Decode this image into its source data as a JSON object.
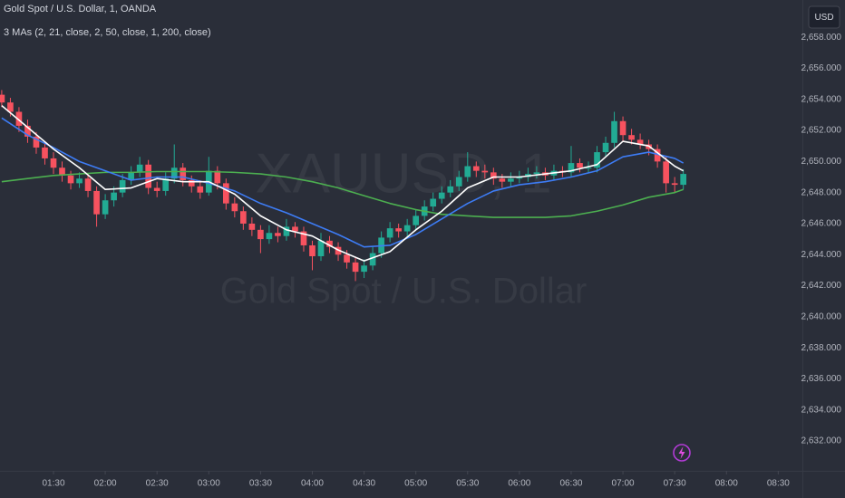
{
  "chart_data": {
    "type": "candlestick",
    "title": "Gold Spot / U.S. Dollar, 1, OANDA",
    "subtitle": "3 MAs (2, 21, close, 2, 50, close, 1, 200, close)",
    "watermark": "XAUUSD, 1",
    "watermark_subtitle": "Gold Spot / U.S. Dollar",
    "currency": "USD",
    "up_color": "#22ab94",
    "down_color": "#f7525f",
    "x": [
      "01:00",
      "01:05",
      "01:10",
      "01:15",
      "01:20",
      "01:25",
      "01:30",
      "01:35",
      "01:40",
      "01:45",
      "01:50",
      "01:55",
      "02:00",
      "02:05",
      "02:10",
      "02:15",
      "02:20",
      "02:25",
      "02:30",
      "02:35",
      "02:40",
      "02:45",
      "02:50",
      "02:55",
      "03:00",
      "03:05",
      "03:10",
      "03:15",
      "03:20",
      "03:25",
      "03:30",
      "03:35",
      "03:40",
      "03:45",
      "03:50",
      "03:55",
      "04:00",
      "04:05",
      "04:10",
      "04:15",
      "04:20",
      "04:25",
      "04:30",
      "04:35",
      "04:40",
      "04:45",
      "04:50",
      "04:55",
      "05:00",
      "05:05",
      "05:10",
      "05:15",
      "05:20",
      "05:25",
      "05:30",
      "05:35",
      "05:40",
      "05:45",
      "05:50",
      "05:55",
      "06:00",
      "06:05",
      "06:10",
      "06:15",
      "06:20",
      "06:25",
      "06:30",
      "06:35",
      "06:40",
      "06:45",
      "06:50",
      "06:55",
      "07:00",
      "07:05",
      "07:10",
      "07:15",
      "07:20",
      "07:25",
      "07:30",
      "07:35"
    ],
    "ohlc": [
      [
        2654.3,
        2654.6,
        2653.5,
        2653.8
      ],
      [
        2653.8,
        2654.1,
        2652.9,
        2653.2
      ],
      [
        2653.2,
        2653.5,
        2651.9,
        2652.3
      ],
      [
        2652.3,
        2652.7,
        2651.2,
        2651.6
      ],
      [
        2651.6,
        2651.9,
        2650.5,
        2650.9
      ],
      [
        2650.9,
        2651.3,
        2649.8,
        2650.2
      ],
      [
        2650.2,
        2650.6,
        2649.2,
        2649.6
      ],
      [
        2649.6,
        2650.0,
        2648.7,
        2649.1
      ],
      [
        2649.1,
        2649.4,
        2648.2,
        2648.6
      ],
      [
        2648.6,
        2649.3,
        2648.3,
        2648.9
      ],
      [
        2648.9,
        2649.2,
        2647.7,
        2648.1
      ],
      [
        2648.1,
        2648.4,
        2645.8,
        2646.6
      ],
      [
        2646.6,
        2647.9,
        2646.3,
        2647.5
      ],
      [
        2647.5,
        2648.4,
        2647.1,
        2648.0
      ],
      [
        2648.0,
        2649.2,
        2647.7,
        2648.8
      ],
      [
        2648.8,
        2649.7,
        2648.5,
        2649.3
      ],
      [
        2649.3,
        2650.3,
        2649.0,
        2649.8
      ],
      [
        2649.8,
        2650.1,
        2647.9,
        2648.3
      ],
      [
        2648.3,
        2648.7,
        2647.7,
        2648.1
      ],
      [
        2648.1,
        2649.3,
        2647.8,
        2648.9
      ],
      [
        2648.9,
        2651.1,
        2648.6,
        2649.6
      ],
      [
        2649.6,
        2649.9,
        2648.4,
        2648.8
      ],
      [
        2648.8,
        2649.1,
        2648.0,
        2648.4
      ],
      [
        2648.4,
        2648.8,
        2647.6,
        2648.0
      ],
      [
        2648.0,
        2650.3,
        2647.8,
        2649.4
      ],
      [
        2649.4,
        2649.7,
        2648.2,
        2648.6
      ],
      [
        2648.6,
        2648.9,
        2646.9,
        2647.3
      ],
      [
        2647.3,
        2647.7,
        2646.4,
        2646.8
      ],
      [
        2646.8,
        2647.1,
        2645.6,
        2646.0
      ],
      [
        2646.0,
        2646.4,
        2645.2,
        2645.6
      ],
      [
        2645.6,
        2645.9,
        2644.1,
        2645.0
      ],
      [
        2645.0,
        2645.9,
        2644.7,
        2645.4
      ],
      [
        2645.4,
        2645.8,
        2644.8,
        2645.2
      ],
      [
        2645.2,
        2646.3,
        2644.9,
        2645.8
      ],
      [
        2645.8,
        2646.1,
        2645.1,
        2645.5
      ],
      [
        2645.5,
        2645.8,
        2644.2,
        2644.6
      ],
      [
        2644.6,
        2644.9,
        2643.0,
        2643.9
      ],
      [
        2643.9,
        2645.4,
        2643.6,
        2644.9
      ],
      [
        2644.9,
        2645.2,
        2644.1,
        2644.5
      ],
      [
        2644.5,
        2644.8,
        2643.6,
        2644.0
      ],
      [
        2644.0,
        2644.3,
        2643.1,
        2643.5
      ],
      [
        2643.5,
        2643.8,
        2642.3,
        2642.9
      ],
      [
        2642.9,
        2643.7,
        2642.5,
        2643.3
      ],
      [
        2643.3,
        2644.5,
        2643.0,
        2644.1
      ],
      [
        2644.1,
        2645.5,
        2643.8,
        2645.1
      ],
      [
        2645.1,
        2646.1,
        2644.8,
        2645.7
      ],
      [
        2645.7,
        2646.0,
        2645.1,
        2645.5
      ],
      [
        2645.5,
        2646.3,
        2645.2,
        2645.9
      ],
      [
        2645.9,
        2646.9,
        2645.6,
        2646.5
      ],
      [
        2646.5,
        2647.5,
        2646.2,
        2647.1
      ],
      [
        2647.1,
        2648.0,
        2646.8,
        2647.6
      ],
      [
        2647.6,
        2648.4,
        2647.3,
        2648.0
      ],
      [
        2648.0,
        2648.8,
        2647.7,
        2648.4
      ],
      [
        2648.4,
        2649.4,
        2648.1,
        2649.0
      ],
      [
        2649.0,
        2650.6,
        2648.7,
        2649.7
      ],
      [
        2649.7,
        2650.0,
        2649.0,
        2649.4
      ],
      [
        2649.4,
        2649.8,
        2648.9,
        2649.3
      ],
      [
        2649.3,
        2649.6,
        2648.5,
        2648.9
      ],
      [
        2648.9,
        2649.2,
        2648.3,
        2648.7
      ],
      [
        2648.7,
        2649.3,
        2648.4,
        2648.9
      ],
      [
        2648.9,
        2649.4,
        2648.6,
        2649.0
      ],
      [
        2649.0,
        2649.6,
        2648.7,
        2649.2
      ],
      [
        2649.2,
        2649.7,
        2648.9,
        2649.3
      ],
      [
        2649.3,
        2649.6,
        2648.8,
        2649.1
      ],
      [
        2649.1,
        2649.8,
        2648.8,
        2649.4
      ],
      [
        2649.4,
        2649.7,
        2649.0,
        2649.3
      ],
      [
        2649.3,
        2651.0,
        2649.0,
        2649.9
      ],
      [
        2649.9,
        2650.2,
        2649.3,
        2649.6
      ],
      [
        2649.6,
        2650.0,
        2649.3,
        2649.6
      ],
      [
        2649.6,
        2651.0,
        2649.3,
        2650.6
      ],
      [
        2650.6,
        2651.6,
        2650.3,
        2651.2
      ],
      [
        2651.2,
        2653.2,
        2650.9,
        2652.6
      ],
      [
        2652.6,
        2652.9,
        2651.3,
        2651.7
      ],
      [
        2651.7,
        2652.1,
        2651.1,
        2651.4
      ],
      [
        2651.4,
        2651.8,
        2650.8,
        2651.1
      ],
      [
        2651.1,
        2651.4,
        2650.4,
        2650.8
      ],
      [
        2650.8,
        2651.1,
        2649.6,
        2650.0
      ],
      [
        2650.0,
        2650.3,
        2648.0,
        2648.6
      ],
      [
        2648.6,
        2649.0,
        2648.0,
        2648.5
      ],
      [
        2648.5,
        2649.5,
        2648.2,
        2649.2
      ]
    ],
    "series": [
      {
        "color": "#4caf50",
        "x": [
          "01:00",
          "01:15",
          "01:30",
          "01:45",
          "02:00",
          "02:15",
          "02:30",
          "02:45",
          "03:00",
          "03:15",
          "03:30",
          "03:45",
          "04:00",
          "04:15",
          "04:30",
          "04:45",
          "05:00",
          "05:15",
          "05:30",
          "05:45",
          "06:00",
          "06:15",
          "06:30",
          "06:45",
          "07:00",
          "07:15",
          "07:30",
          "07:35"
        ],
        "values": [
          2648.7,
          2648.9,
          2649.1,
          2649.2,
          2649.3,
          2649.3,
          2649.35,
          2649.35,
          2649.35,
          2649.3,
          2649.2,
          2649.0,
          2648.7,
          2648.3,
          2647.8,
          2647.3,
          2646.9,
          2646.6,
          2646.5,
          2646.4,
          2646.4,
          2646.4,
          2646.5,
          2646.8,
          2647.2,
          2647.7,
          2648.0,
          2648.2
        ]
      },
      {
        "color": "#3d7cf5",
        "x": [
          "01:00",
          "01:15",
          "01:30",
          "01:45",
          "02:00",
          "02:15",
          "02:30",
          "02:45",
          "03:00",
          "03:15",
          "03:30",
          "03:45",
          "04:00",
          "04:15",
          "04:30",
          "04:45",
          "05:00",
          "05:15",
          "05:30",
          "05:45",
          "06:00",
          "06:15",
          "06:30",
          "06:45",
          "07:00",
          "07:15",
          "07:30",
          "07:35"
        ],
        "values": [
          2652.8,
          2651.7,
          2650.9,
          2650.0,
          2649.4,
          2648.8,
          2649.0,
          2649.0,
          2648.6,
          2648.1,
          2647.3,
          2646.7,
          2646.0,
          2645.3,
          2644.5,
          2644.6,
          2645.3,
          2646.3,
          2647.3,
          2648.1,
          2648.5,
          2648.7,
          2649.0,
          2649.4,
          2650.3,
          2650.6,
          2650.2,
          2649.9
        ]
      },
      {
        "color": "#ffffff",
        "x": [
          "01:00",
          "01:15",
          "01:30",
          "01:45",
          "02:00",
          "02:15",
          "02:30",
          "02:45",
          "03:00",
          "03:15",
          "03:30",
          "03:45",
          "04:00",
          "04:15",
          "04:30",
          "04:45",
          "05:00",
          "05:15",
          "05:30",
          "05:45",
          "06:00",
          "06:15",
          "06:30",
          "06:45",
          "07:00",
          "07:15",
          "07:30",
          "07:35"
        ],
        "values": [
          2653.6,
          2652.2,
          2650.8,
          2649.6,
          2648.2,
          2648.3,
          2648.9,
          2648.7,
          2648.7,
          2647.9,
          2646.5,
          2645.6,
          2645.2,
          2644.3,
          2643.6,
          2644.2,
          2645.6,
          2646.8,
          2648.3,
          2649.0,
          2649.0,
          2649.2,
          2649.4,
          2649.8,
          2651.3,
          2651.0,
          2649.7,
          2649.4
        ]
      }
    ],
    "xlim": [
      "00:59",
      "08:44"
    ],
    "xticks": [
      "01:30",
      "02:00",
      "02:30",
      "03:00",
      "03:30",
      "04:00",
      "04:30",
      "05:00",
      "05:30",
      "06:00",
      "06:30",
      "07:00",
      "07:30",
      "08:00",
      "08:30"
    ],
    "ylim": [
      2630.08,
      2660.4
    ],
    "yticks": [
      {
        "value": 2632,
        "label": "2,632.000"
      },
      {
        "value": 2634,
        "label": "2,634.000"
      },
      {
        "value": 2636,
        "label": "2,636.000"
      },
      {
        "value": 2638,
        "label": "2,638.000"
      },
      {
        "value": 2640,
        "label": "2,640.000"
      },
      {
        "value": 2642,
        "label": "2,642.000"
      },
      {
        "value": 2644,
        "label": "2,644.000"
      },
      {
        "value": 2646,
        "label": "2,646.000"
      },
      {
        "value": 2648,
        "label": "2,648.000"
      },
      {
        "value": 2650,
        "label": "2,650.000"
      },
      {
        "value": 2652,
        "label": "2,652.000"
      },
      {
        "value": 2654,
        "label": "2,654.000"
      },
      {
        "value": 2656,
        "label": "2,656.000"
      },
      {
        "value": 2658,
        "label": "2,658.000"
      }
    ]
  }
}
